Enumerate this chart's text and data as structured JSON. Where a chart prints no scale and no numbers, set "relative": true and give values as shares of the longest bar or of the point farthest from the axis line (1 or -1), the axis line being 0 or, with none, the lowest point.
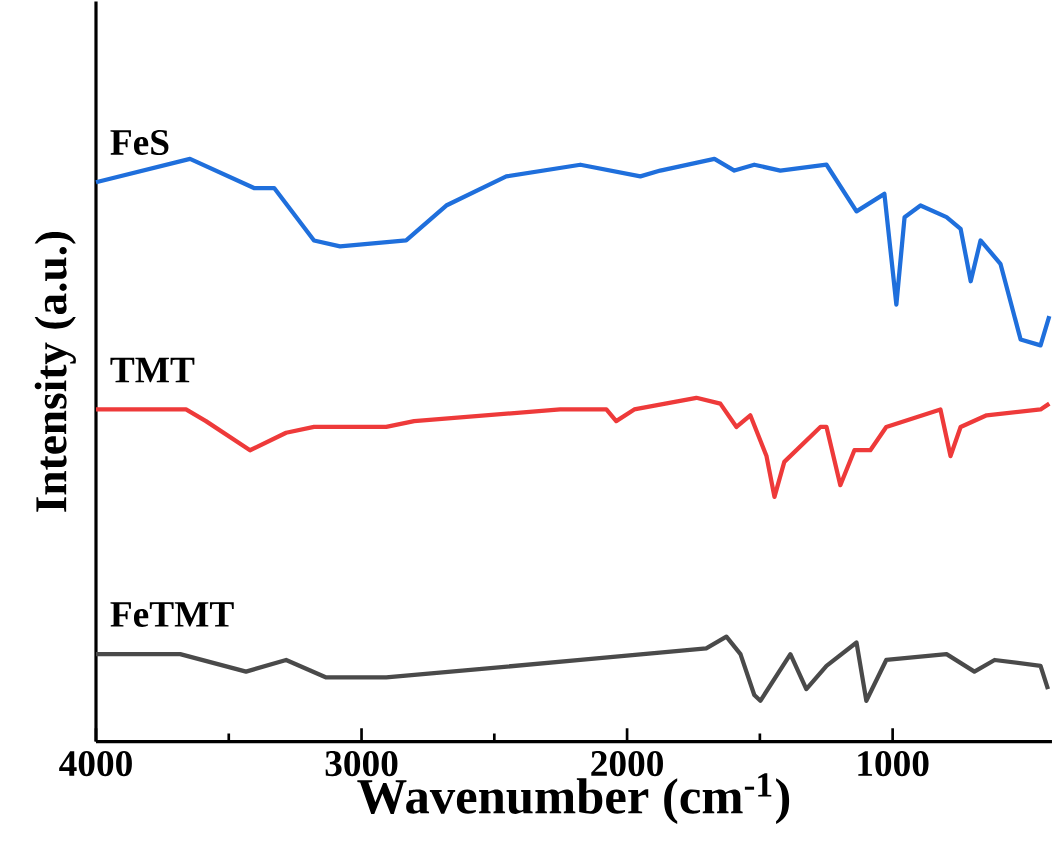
{
  "chart_data": {
    "type": "line",
    "xlabel": "Wavenumber (cm$^{-1}$)",
    "ylabel": "Intensity (a.u.)",
    "relative": true,
    "xlim": [
      4000,
      400
    ],
    "xticks": [
      4000,
      3000,
      2000,
      1000
    ],
    "series": [
      {
        "name": "FeS",
        "color": "#1f6fdc",
        "x": [
          4000,
          3646,
          3405,
          3329,
          3179,
          3081,
          2832,
          2681,
          2455,
          2176,
          1950,
          1875,
          1671,
          1596,
          1521,
          1423,
          1249,
          1136,
          1031,
          986,
          955,
          895,
          797,
          744,
          706,
          669,
          594,
          518,
          443,
          410
        ],
        "values": [
          0.96,
          1.0,
          0.95,
          0.95,
          0.86,
          0.85,
          0.86,
          0.92,
          0.97,
          0.99,
          0.97,
          0.98,
          1.0,
          0.98,
          0.99,
          0.98,
          0.99,
          0.91,
          0.94,
          0.75,
          0.9,
          0.92,
          0.9,
          0.88,
          0.79,
          0.86,
          0.82,
          0.69,
          0.68,
          0.73
        ]
      },
      {
        "name": "TMT",
        "color": "#ee3a3a",
        "x": [
          4000,
          3661,
          3586,
          3420,
          3284,
          3179,
          2907,
          2802,
          2252,
          2078,
          2041,
          1973,
          1739,
          1649,
          1588,
          1536,
          1475,
          1445,
          1408,
          1272,
          1249,
          1197,
          1144,
          1084,
          1024,
          820,
          782,
          744,
          646,
          443,
          410
        ],
        "values": [
          0.57,
          0.57,
          0.55,
          0.5,
          0.53,
          0.54,
          0.54,
          0.55,
          0.57,
          0.57,
          0.55,
          0.57,
          0.59,
          0.58,
          0.54,
          0.56,
          0.49,
          0.42,
          0.48,
          0.54,
          0.54,
          0.44,
          0.5,
          0.5,
          0.54,
          0.57,
          0.49,
          0.54,
          0.56,
          0.57,
          0.58
        ]
      },
      {
        "name": "FeTMT",
        "color": "#4a4a4a",
        "x": [
          4000,
          3683,
          3435,
          3284,
          3133,
          2907,
          2176,
          1702,
          1626,
          1573,
          1521,
          1498,
          1385,
          1325,
          1249,
          1136,
          1099,
          1024,
          797,
          692,
          616,
          443,
          415
        ],
        "values": [
          0.15,
          0.15,
          0.12,
          0.14,
          0.11,
          0.11,
          0.14,
          0.16,
          0.18,
          0.15,
          0.08,
          0.07,
          0.15,
          0.09,
          0.13,
          0.17,
          0.07,
          0.14,
          0.15,
          0.12,
          0.14,
          0.13,
          0.09
        ]
      }
    ]
  }
}
